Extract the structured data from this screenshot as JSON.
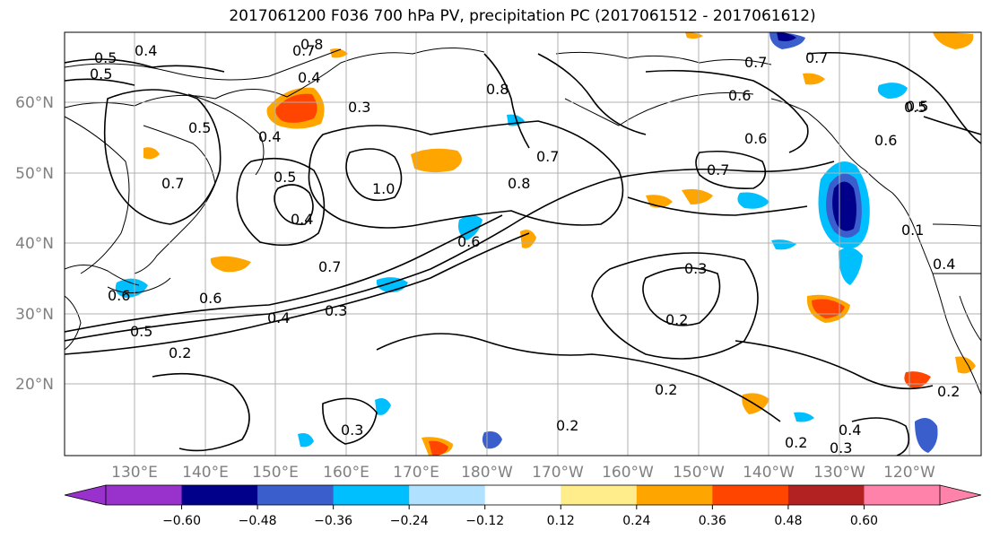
{
  "title": "2017061200 F036 700 hPa PV, precipitation PC (2017061512 - 2017061612)",
  "lat_labels": [
    "60°N",
    "50°N",
    "40°N",
    "30°N",
    "20°N"
  ],
  "lon_labels": [
    "130°E",
    "140°E",
    "150°E",
    "160°E",
    "170°E",
    "180°W",
    "170°W",
    "160°W",
    "150°W",
    "140°W",
    "130°W",
    "120°W"
  ],
  "colorbar": {
    "colors": [
      "#9932cc",
      "#00008b",
      "#3a5fcd",
      "#00bfff",
      "#b0e2ff",
      "#ffffff",
      "#ffec8b",
      "#ffa500",
      "#ff4500",
      "#b22222",
      "#ff82ab"
    ],
    "ticks": [
      "−0.60",
      "−0.48",
      "−0.36",
      "−0.24",
      "−0.12",
      "0.12",
      "0.24",
      "0.36",
      "0.48",
      "0.60"
    ]
  },
  "contour_labels": [
    "0.8",
    "0.7",
    "0.4",
    "0.4",
    "0.5",
    "0.7",
    "0.6",
    "0.3",
    "0.5",
    "0.4",
    "0.5",
    "1.0",
    "0.8",
    "0.7",
    "0.8",
    "0.6",
    "0.6",
    "0.7",
    "0.7",
    "0.5",
    "0.4",
    "0.5",
    "0.6",
    "0.5",
    "0.7",
    "0.6",
    "0.4",
    "0.3",
    "0.5",
    "0.2",
    "0.3",
    "0.2",
    "0.2",
    "0.3",
    "0.2",
    "0.4",
    "0.2",
    "0.3",
    "0.1",
    "0.4",
    "0.6",
    "0.7",
    "0.2"
  ],
  "precip_colors": {
    "neg_dark": "#00008b",
    "neg_mid": "#3a5fcd",
    "neg_light": "#00bfff",
    "pos_light": "#ffa500",
    "pos_mid": "#ff4500",
    "pos_yellow": "#ffec8b"
  }
}
